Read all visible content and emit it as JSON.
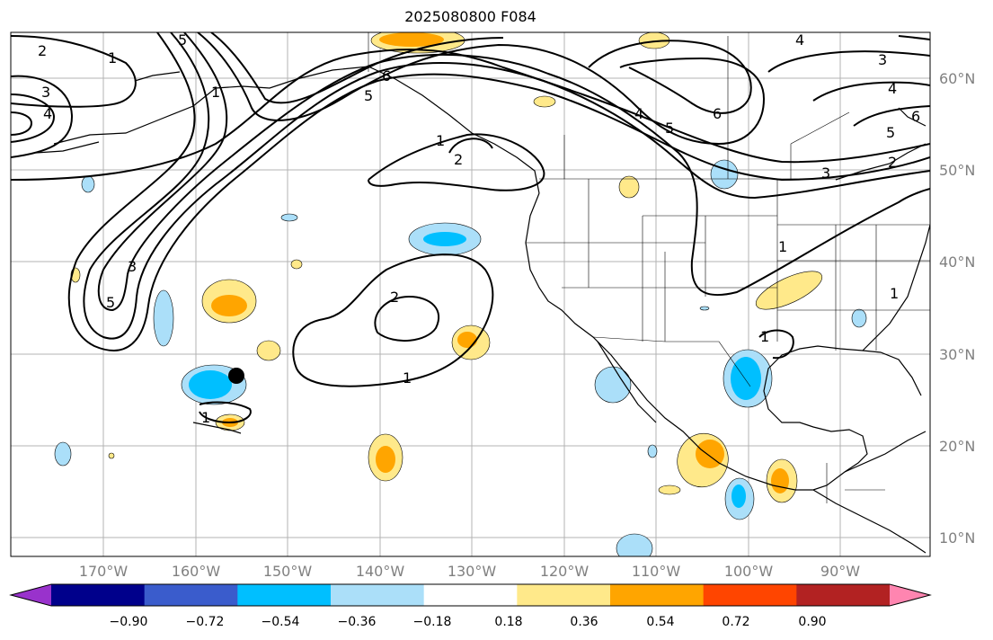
{
  "title": "2025080800 F084",
  "lat_labels": [
    "60°N",
    "50°N",
    "40°N",
    "30°N",
    "20°N",
    "10°N"
  ],
  "lon_labels": [
    "170°W",
    "160°W",
    "150°W",
    "140°W",
    "130°W",
    "120°W",
    "110°W",
    "100°W",
    "90°W"
  ],
  "contour_labels": [
    "1",
    "2",
    "3",
    "4",
    "5",
    "6"
  ],
  "colorbar": {
    "ticks": [
      "−0.90",
      "−0.72",
      "−0.54",
      "−0.36",
      "−0.18",
      "0.18",
      "0.36",
      "0.54",
      "0.72",
      "0.90"
    ],
    "colors": [
      "#9932cc",
      "#00008b",
      "#3a5ccc",
      "#00bfff",
      "#abdff9",
      "#ffffff",
      "#ffe98a",
      "#ffa500",
      "#ff4500",
      "#b22222",
      "#ff85b0"
    ]
  },
  "marker": {
    "label": "station-marker"
  }
}
